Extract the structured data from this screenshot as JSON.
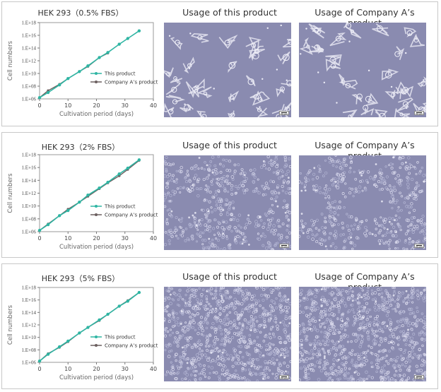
{
  "colors": {
    "this_product": "#2fb5a3",
    "company_a": "#6b5f5f",
    "axis": "#777777",
    "photo_base": "#8a8bb0",
    "panel_border": "#c8c8c8"
  },
  "photo_titles": {
    "this_product": "Usage of this product",
    "company_a": "Usage of Company A’s product"
  },
  "scale_bar_label": "50 μm",
  "panels": [
    {
      "title": "HEK 293（0.5% FBS）",
      "density": "sparse"
    },
    {
      "title": "HEK 293（2% FBS）",
      "density": "medium"
    },
    {
      "title": "HEK 293（5% FBS）",
      "density": "dense"
    }
  ],
  "chart_data": [
    {
      "type": "line",
      "title": "HEK 293 (0.5% FBS)",
      "xlabel": "Cultivation period (days)",
      "ylabel": "Cell numbers",
      "yscale": "log",
      "xlim": [
        0,
        40
      ],
      "ylim": [
        "1.E+06",
        "1.E+18"
      ],
      "xticks": [
        0,
        10,
        20,
        30,
        40
      ],
      "yticks": [
        "1.E+06",
        "1.E+08",
        "1.E+10",
        "1.E+12",
        "1.E+14",
        "1.E+16",
        "1.E+18"
      ],
      "legend": {
        "position": "lower right",
        "entries": [
          "This product",
          "Company A’s product"
        ]
      },
      "grid": false,
      "series": [
        {
          "name": "This product",
          "x": [
            0,
            3,
            7,
            10,
            14,
            17,
            21,
            24,
            28,
            31,
            35
          ],
          "log10_y": [
            6.2,
            7.0,
            8.2,
            9.2,
            10.3,
            11.2,
            12.5,
            13.3,
            14.6,
            15.5,
            16.7
          ]
        },
        {
          "name": "Company A’s product",
          "x": [
            0,
            3,
            7,
            10,
            14,
            17,
            21,
            24
          ],
          "log10_y": [
            6.2,
            7.3,
            8.3,
            9.2,
            10.3,
            11.1,
            12.5,
            13.2
          ]
        }
      ]
    },
    {
      "type": "line",
      "title": "HEK 293 (2% FBS)",
      "xlabel": "Cultivation period (days)",
      "ylabel": "Cell numbers",
      "yscale": "log",
      "xlim": [
        0,
        40
      ],
      "ylim": [
        "1.E+06",
        "1.E+18"
      ],
      "xticks": [
        0,
        10,
        20,
        30,
        40
      ],
      "yticks": [
        "1.E+06",
        "1.E+08",
        "1.E+10",
        "1.E+12",
        "1.E+14",
        "1.E+16",
        "1.E+18"
      ],
      "legend": {
        "position": "lower right",
        "entries": [
          "This product",
          "Company A’s product"
        ]
      },
      "grid": false,
      "series": [
        {
          "name": "This product",
          "x": [
            0,
            3,
            7,
            10,
            14,
            17,
            21,
            24,
            28,
            31,
            35
          ],
          "log10_y": [
            6.2,
            7.1,
            8.5,
            9.3,
            10.6,
            11.7,
            12.8,
            13.7,
            15.0,
            15.9,
            17.2
          ]
        },
        {
          "name": "Company A’s product",
          "x": [
            0,
            3,
            7,
            10,
            14,
            17,
            21,
            24,
            28,
            31,
            35
          ],
          "log10_y": [
            6.2,
            7.2,
            8.5,
            9.5,
            10.6,
            11.5,
            12.7,
            13.6,
            14.7,
            15.7,
            17.1
          ]
        }
      ]
    },
    {
      "type": "line",
      "title": "HEK 293 (5% FBS)",
      "xlabel": "Cultivation period (days)",
      "ylabel": "Cell numbers",
      "yscale": "log",
      "xlim": [
        0,
        40
      ],
      "ylim": [
        "1.E+06",
        "1.E+18"
      ],
      "xticks": [
        0,
        10,
        20,
        30,
        40
      ],
      "yticks": [
        "1.E+06",
        "1.E+08",
        "1.E+10",
        "1.E+12",
        "1.E+14",
        "1.E+16",
        "1.E+18"
      ],
      "legend": {
        "position": "lower right",
        "entries": [
          "This product",
          "Company A’s product"
        ]
      },
      "grid": false,
      "series": [
        {
          "name": "This product",
          "x": [
            0,
            3,
            7,
            10,
            14,
            17,
            21,
            24,
            28,
            31,
            35
          ],
          "log10_y": [
            6.2,
            7.3,
            8.5,
            9.4,
            10.7,
            11.6,
            12.8,
            13.7,
            15.0,
            15.8,
            17.2
          ]
        },
        {
          "name": "Company A’s product",
          "x": [
            0,
            3,
            7,
            10,
            14,
            17,
            21,
            24,
            28,
            31,
            35
          ],
          "log10_y": [
            6.2,
            7.4,
            8.4,
            9.3,
            10.7,
            11.6,
            12.7,
            13.7,
            15.0,
            15.9,
            17.2
          ]
        }
      ]
    }
  ]
}
